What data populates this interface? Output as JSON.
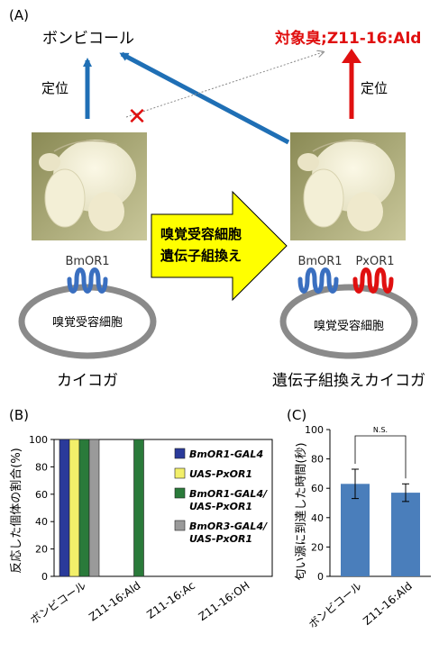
{
  "panel_a": {
    "label": "(A)",
    "bombykol_label": "ボンビコール",
    "target_odor_prefix": "対象臭;",
    "target_odor_name": "Z11-16:Ald",
    "localize_left": "定位",
    "localize_right": "定位",
    "cross_mark": "✕",
    "receptor_left": "BmOR1",
    "receptor_right_1": "BmOR1",
    "receptor_right_2": "PxOR1",
    "cell_left": "嗅覚受容細胞",
    "cell_right": "嗅覚受容細胞",
    "arrow_line1": "嗅覚受容細胞",
    "arrow_line2": "遺伝子組換え",
    "moth_left_caption": "カイコガ",
    "moth_right_caption": "遺伝子組換えカイコガ",
    "colors": {
      "blue": "#1f6fb5",
      "red": "#e01010",
      "yellow": "#ffff00",
      "gray": "#8a8a8a"
    }
  },
  "panel_b_label": "(B)",
  "panel_c_label": "(C)",
  "chart_data": [
    {
      "type": "bar",
      "ylabel": "反応した個体の割合(%)",
      "ylim": [
        0,
        100
      ],
      "yticks": [
        0,
        20,
        40,
        60,
        80,
        100
      ],
      "categories": [
        "ボンビコール",
        "Z11-16:Ald",
        "Z11-16:Ac",
        "Z11-16:OH"
      ],
      "series": [
        {
          "name": "BmOR1-GAL4",
          "color": "#2a3a9a",
          "values": [
            100,
            0,
            0,
            0
          ]
        },
        {
          "name": "UAS-PxOR1",
          "color": "#f2ef6a",
          "values": [
            100,
            0,
            0,
            0
          ]
        },
        {
          "name": "BmOR1-GAL4/\nUAS-PxOR1",
          "color": "#2a7a3a",
          "values": [
            100,
            100,
            0,
            0
          ]
        },
        {
          "name": "BmOR3-GAL4/\nUAS-PxOR1",
          "color": "#9a9a9a",
          "values": [
            100,
            0,
            0,
            0
          ]
        }
      ],
      "legend_position": "right"
    },
    {
      "type": "bar",
      "ylabel": "匂い源に到達した時間(秒)",
      "ylim": [
        0,
        100
      ],
      "yticks": [
        0,
        20,
        40,
        60,
        80,
        100
      ],
      "categories": [
        "ボンビコール",
        "Z11-16:Ald"
      ],
      "values": [
        63,
        57
      ],
      "errors": [
        10,
        6
      ],
      "color": "#4a7ebb",
      "annotation": "N.S."
    }
  ]
}
